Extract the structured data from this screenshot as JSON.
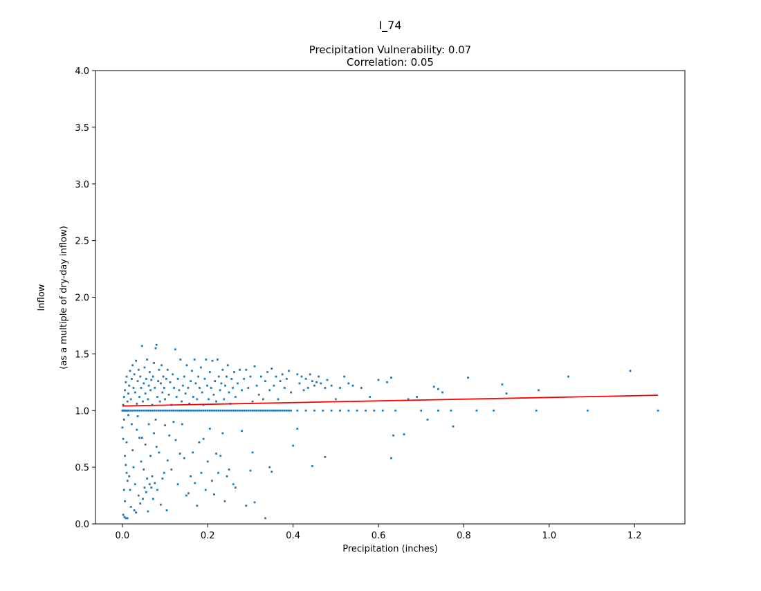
{
  "figure": {
    "suptitle": "I_74"
  },
  "chart_data": {
    "type": "scatter",
    "title_line1": "Precipitation Vulnerability: 0.07",
    "title_line2": "Correlation: 0.05",
    "xlabel": "Precipitation (inches)",
    "ylabel_line1": "Inflow",
    "ylabel_line2": "(as a multiple of dry-day inflow)",
    "xlim": [
      -0.063,
      1.318
    ],
    "ylim": [
      0.0,
      4.0
    ],
    "xticks": [
      0.0,
      0.2,
      0.4,
      0.6,
      0.8,
      1.0,
      1.2
    ],
    "xtick_labels": [
      "0.0",
      "0.2",
      "0.4",
      "0.6",
      "0.8",
      "1.0",
      "1.2"
    ],
    "yticks": [
      0.0,
      0.5,
      1.0,
      1.5,
      2.0,
      2.5,
      3.0,
      3.5,
      4.0
    ],
    "ytick_labels": [
      "0.0",
      "0.5",
      "1.0",
      "1.5",
      "2.0",
      "2.5",
      "3.0",
      "3.5",
      "4.0"
    ],
    "grid": false,
    "point_color": "#1f77b4",
    "fit_line_color": "#ff0000",
    "fit_line": {
      "x": [
        0.0,
        1.255
      ],
      "y": [
        1.04,
        1.135
      ]
    },
    "points": [
      [
        0.0,
        1.0
      ],
      [
        0.003,
        1.0
      ],
      [
        0.005,
        1.0
      ],
      [
        0.008,
        1.0
      ],
      [
        0.012,
        1.0
      ],
      [
        0.015,
        1.0
      ],
      [
        0.02,
        1.0
      ],
      [
        0.025,
        1.0
      ],
      [
        0.03,
        1.0
      ],
      [
        0.035,
        1.0
      ],
      [
        0.04,
        1.0
      ],
      [
        0.045,
        1.0
      ],
      [
        0.05,
        1.0
      ],
      [
        0.055,
        1.0
      ],
      [
        0.06,
        1.0
      ],
      [
        0.065,
        1.0
      ],
      [
        0.07,
        1.0
      ],
      [
        0.075,
        1.0
      ],
      [
        0.08,
        1.0
      ],
      [
        0.085,
        1.0
      ],
      [
        0.09,
        1.0
      ],
      [
        0.095,
        1.0
      ],
      [
        0.1,
        1.0
      ],
      [
        0.105,
        1.0
      ],
      [
        0.11,
        1.0
      ],
      [
        0.115,
        1.0
      ],
      [
        0.12,
        1.0
      ],
      [
        0.125,
        1.0
      ],
      [
        0.13,
        1.0
      ],
      [
        0.135,
        1.0
      ],
      [
        0.14,
        1.0
      ],
      [
        0.145,
        1.0
      ],
      [
        0.15,
        1.0
      ],
      [
        0.155,
        1.0
      ],
      [
        0.16,
        1.0
      ],
      [
        0.165,
        1.0
      ],
      [
        0.17,
        1.0
      ],
      [
        0.175,
        1.0
      ],
      [
        0.18,
        1.0
      ],
      [
        0.185,
        1.0
      ],
      [
        0.19,
        1.0
      ],
      [
        0.195,
        1.0
      ],
      [
        0.2,
        1.0
      ],
      [
        0.205,
        1.0
      ],
      [
        0.21,
        1.0
      ],
      [
        0.215,
        1.0
      ],
      [
        0.22,
        1.0
      ],
      [
        0.225,
        1.0
      ],
      [
        0.23,
        1.0
      ],
      [
        0.235,
        1.0
      ],
      [
        0.24,
        1.0
      ],
      [
        0.245,
        1.0
      ],
      [
        0.25,
        1.0
      ],
      [
        0.255,
        1.0
      ],
      [
        0.26,
        1.0
      ],
      [
        0.265,
        1.0
      ],
      [
        0.27,
        1.0
      ],
      [
        0.275,
        1.0
      ],
      [
        0.28,
        1.0
      ],
      [
        0.285,
        1.0
      ],
      [
        0.29,
        1.0
      ],
      [
        0.295,
        1.0
      ],
      [
        0.3,
        1.0
      ],
      [
        0.305,
        1.0
      ],
      [
        0.31,
        1.0
      ],
      [
        0.315,
        1.0
      ],
      [
        0.32,
        1.0
      ],
      [
        0.325,
        1.0
      ],
      [
        0.33,
        1.0
      ],
      [
        0.335,
        1.0
      ],
      [
        0.34,
        1.0
      ],
      [
        0.345,
        1.0
      ],
      [
        0.35,
        1.0
      ],
      [
        0.355,
        1.0
      ],
      [
        0.36,
        1.0
      ],
      [
        0.365,
        1.0
      ],
      [
        0.37,
        1.0
      ],
      [
        0.375,
        1.0
      ],
      [
        0.38,
        1.0
      ],
      [
        0.385,
        1.0
      ],
      [
        0.39,
        1.0
      ],
      [
        0.395,
        1.0
      ],
      [
        0.41,
        1.0
      ],
      [
        0.43,
        1.0
      ],
      [
        0.45,
        1.0
      ],
      [
        0.47,
        1.0
      ],
      [
        0.49,
        1.0
      ],
      [
        0.51,
        1.0
      ],
      [
        0.53,
        1.0
      ],
      [
        0.55,
        1.0
      ],
      [
        0.57,
        1.0
      ],
      [
        0.59,
        1.0
      ],
      [
        0.61,
        1.0
      ],
      [
        0.64,
        1.0
      ],
      [
        0.7,
        1.0
      ],
      [
        0.74,
        1.0
      ],
      [
        0.77,
        1.0
      ],
      [
        0.83,
        1.0
      ],
      [
        0.87,
        1.0
      ],
      [
        0.97,
        1.0
      ],
      [
        1.09,
        1.0
      ],
      [
        1.255,
        1.0
      ],
      [
        0.002,
        1.05
      ],
      [
        0.004,
        1.12
      ],
      [
        0.006,
        1.18
      ],
      [
        0.008,
        1.25
      ],
      [
        0.01,
        1.3
      ],
      [
        0.012,
        1.08
      ],
      [
        0.014,
        1.15
      ],
      [
        0.016,
        1.22
      ],
      [
        0.018,
        1.35
      ],
      [
        0.02,
        1.1
      ],
      [
        0.022,
        1.28
      ],
      [
        0.024,
        1.4
      ],
      [
        0.026,
        1.2
      ],
      [
        0.028,
        1.32
      ],
      [
        0.03,
        1.16
      ],
      [
        0.032,
        1.44
      ],
      [
        0.034,
        1.06
      ],
      [
        0.036,
        1.26
      ],
      [
        0.038,
        1.36
      ],
      [
        0.04,
        1.12
      ],
      [
        0.042,
        1.3
      ],
      [
        0.044,
        1.2
      ],
      [
        0.046,
        1.57
      ],
      [
        0.048,
        1.08
      ],
      [
        0.05,
        1.24
      ],
      [
        0.052,
        1.38
      ],
      [
        0.054,
        1.15
      ],
      [
        0.056,
        1.28
      ],
      [
        0.058,
        1.45
      ],
      [
        0.06,
        1.1
      ],
      [
        0.062,
        1.22
      ],
      [
        0.064,
        1.34
      ],
      [
        0.066,
        1.18
      ],
      [
        0.068,
        1.27
      ],
      [
        0.07,
        1.05
      ],
      [
        0.072,
        1.3
      ],
      [
        0.074,
        1.42
      ],
      [
        0.076,
        1.2
      ],
      [
        0.078,
        1.55
      ],
      [
        0.08,
        1.58
      ],
      [
        0.082,
        1.12
      ],
      [
        0.084,
        1.26
      ],
      [
        0.086,
        1.36
      ],
      [
        0.088,
        1.08
      ],
      [
        0.09,
        1.24
      ],
      [
        0.092,
        1.4
      ],
      [
        0.094,
        1.16
      ],
      [
        0.096,
        1.3
      ],
      [
        0.098,
        1.2
      ],
      [
        0.1,
        1.1
      ],
      [
        0.103,
        1.28
      ],
      [
        0.106,
        1.36
      ],
      [
        0.109,
        1.14
      ],
      [
        0.112,
        1.25
      ],
      [
        0.115,
        1.05
      ],
      [
        0.118,
        1.32
      ],
      [
        0.121,
        1.2
      ],
      [
        0.124,
        1.54
      ],
      [
        0.127,
        1.12
      ],
      [
        0.13,
        1.28
      ],
      [
        0.133,
        1.18
      ],
      [
        0.136,
        1.45
      ],
      [
        0.139,
        1.08
      ],
      [
        0.142,
        1.22
      ],
      [
        0.145,
        1.3
      ],
      [
        0.148,
        1.15
      ],
      [
        0.151,
        1.4
      ],
      [
        0.154,
        1.2
      ],
      [
        0.157,
        1.06
      ],
      [
        0.16,
        1.26
      ],
      [
        0.163,
        1.35
      ],
      [
        0.166,
        1.12
      ],
      [
        0.169,
        1.45
      ],
      [
        0.172,
        1.24
      ],
      [
        0.175,
        1.1
      ],
      [
        0.178,
        1.3
      ],
      [
        0.181,
        1.2
      ],
      [
        0.184,
        1.38
      ],
      [
        0.187,
        1.16
      ],
      [
        0.19,
        1.05
      ],
      [
        0.193,
        1.28
      ],
      [
        0.196,
        1.45
      ],
      [
        0.199,
        1.22
      ],
      [
        0.202,
        1.1
      ],
      [
        0.205,
        1.34
      ],
      [
        0.208,
        1.2
      ],
      [
        0.211,
        1.44
      ],
      [
        0.214,
        1.14
      ],
      [
        0.217,
        1.26
      ],
      [
        0.22,
        1.08
      ],
      [
        0.223,
        1.45
      ],
      [
        0.226,
        1.3
      ],
      [
        0.229,
        1.18
      ],
      [
        0.232,
        1.24
      ],
      [
        0.235,
        1.36
      ],
      [
        0.238,
        1.1
      ],
      [
        0.241,
        1.22
      ],
      [
        0.244,
        1.3
      ],
      [
        0.247,
        1.4
      ],
      [
        0.25,
        1.16
      ],
      [
        0.253,
        1.06
      ],
      [
        0.256,
        1.28
      ],
      [
        0.259,
        1.2
      ],
      [
        0.262,
        1.34
      ],
      [
        0.265,
        1.12
      ],
      [
        0.27,
        1.24
      ],
      [
        0.275,
        1.36
      ],
      [
        0.28,
        1.18
      ],
      [
        0.285,
        1.28
      ],
      [
        0.29,
        1.36
      ],
      [
        0.295,
        1.2
      ],
      [
        0.3,
        1.3
      ],
      [
        0.305,
        1.08
      ],
      [
        0.31,
        1.39
      ],
      [
        0.315,
        1.22
      ],
      [
        0.32,
        1.14
      ],
      [
        0.325,
        1.3
      ],
      [
        0.33,
        1.1
      ],
      [
        0.335,
        1.26
      ],
      [
        0.34,
        1.34
      ],
      [
        0.345,
        1.18
      ],
      [
        0.35,
        1.37
      ],
      [
        0.355,
        1.22
      ],
      [
        0.36,
        1.3
      ],
      [
        0.365,
        1.1
      ],
      [
        0.37,
        1.26
      ],
      [
        0.375,
        1.32
      ],
      [
        0.38,
        1.2
      ],
      [
        0.385,
        1.28
      ],
      [
        0.39,
        1.35
      ],
      [
        0.395,
        1.16
      ],
      [
        0.41,
        1.32
      ],
      [
        0.415,
        1.24
      ],
      [
        0.42,
        1.3
      ],
      [
        0.425,
        1.18
      ],
      [
        0.43,
        1.28
      ],
      [
        0.435,
        1.2
      ],
      [
        0.44,
        1.32
      ],
      [
        0.445,
        1.26
      ],
      [
        0.45,
        1.22
      ],
      [
        0.455,
        1.25
      ],
      [
        0.46,
        1.3
      ],
      [
        0.465,
        1.24
      ],
      [
        0.475,
        1.2
      ],
      [
        0.48,
        1.27
      ],
      [
        0.49,
        1.22
      ],
      [
        0.5,
        1.1
      ],
      [
        0.51,
        1.2
      ],
      [
        0.52,
        1.3
      ],
      [
        0.53,
        1.24
      ],
      [
        0.54,
        1.22
      ],
      [
        0.56,
        1.2
      ],
      [
        0.58,
        1.12
      ],
      [
        0.6,
        1.27
      ],
      [
        0.62,
        1.25
      ],
      [
        0.63,
        1.29
      ],
      [
        0.67,
        1.1
      ],
      [
        0.69,
        1.12
      ],
      [
        0.73,
        1.21
      ],
      [
        0.74,
        1.19
      ],
      [
        0.75,
        1.16
      ],
      [
        0.81,
        1.29
      ],
      [
        0.89,
        1.23
      ],
      [
        0.9,
        1.15
      ],
      [
        0.975,
        1.18
      ],
      [
        1.045,
        1.3
      ],
      [
        1.19,
        1.35
      ],
      [
        0.0,
        0.85
      ],
      [
        0.002,
        0.75
      ],
      [
        0.004,
        0.92
      ],
      [
        0.006,
        0.6
      ],
      [
        0.008,
        0.52
      ],
      [
        0.01,
        0.45
      ],
      [
        0.002,
        0.08
      ],
      [
        0.005,
        0.06
      ],
      [
        0.008,
        0.05
      ],
      [
        0.012,
        0.05
      ],
      [
        0.004,
        0.3
      ],
      [
        0.006,
        0.2
      ],
      [
        0.01,
        0.72
      ],
      [
        0.012,
        0.38
      ],
      [
        0.014,
        0.96
      ],
      [
        0.016,
        0.42
      ],
      [
        0.018,
        0.3
      ],
      [
        0.02,
        0.15
      ],
      [
        0.022,
        0.88
      ],
      [
        0.024,
        0.65
      ],
      [
        0.026,
        0.5
      ],
      [
        0.028,
        0.12
      ],
      [
        0.03,
        0.35
      ],
      [
        0.032,
        0.1
      ],
      [
        0.034,
        0.83
      ],
      [
        0.036,
        0.95
      ],
      [
        0.038,
        0.25
      ],
      [
        0.04,
        0.76
      ],
      [
        0.042,
        0.18
      ],
      [
        0.044,
        0.55
      ],
      [
        0.046,
        0.76
      ],
      [
        0.048,
        0.22
      ],
      [
        0.05,
        0.48
      ],
      [
        0.052,
        0.32
      ],
      [
        0.054,
        0.7
      ],
      [
        0.056,
        0.28
      ],
      [
        0.058,
        0.4
      ],
      [
        0.06,
        0.11
      ],
      [
        0.062,
        0.88
      ],
      [
        0.064,
        0.35
      ],
      [
        0.066,
        0.6
      ],
      [
        0.068,
        0.32
      ],
      [
        0.07,
        0.42
      ],
      [
        0.072,
        0.22
      ],
      [
        0.074,
        0.8
      ],
      [
        0.076,
        0.36
      ],
      [
        0.078,
        0.92
      ],
      [
        0.08,
        0.68
      ],
      [
        0.082,
        0.3
      ],
      [
        0.086,
        0.63
      ],
      [
        0.09,
        0.17
      ],
      [
        0.094,
        0.4
      ],
      [
        0.098,
        0.45
      ],
      [
        0.1,
        0.87
      ],
      [
        0.104,
        0.12
      ],
      [
        0.106,
        0.56
      ],
      [
        0.11,
        0.78
      ],
      [
        0.115,
        0.48
      ],
      [
        0.12,
        0.9
      ],
      [
        0.125,
        0.74
      ],
      [
        0.13,
        0.35
      ],
      [
        0.135,
        0.62
      ],
      [
        0.14,
        0.88
      ],
      [
        0.145,
        0.58
      ],
      [
        0.15,
        0.25
      ],
      [
        0.155,
        0.27
      ],
      [
        0.16,
        0.42
      ],
      [
        0.165,
        0.63
      ],
      [
        0.17,
        0.36
      ],
      [
        0.175,
        0.16
      ],
      [
        0.18,
        0.72
      ],
      [
        0.185,
        0.45
      ],
      [
        0.19,
        0.75
      ],
      [
        0.195,
        0.3
      ],
      [
        0.2,
        0.55
      ],
      [
        0.205,
        0.84
      ],
      [
        0.21,
        0.38
      ],
      [
        0.215,
        0.26
      ],
      [
        0.22,
        0.62
      ],
      [
        0.225,
        0.45
      ],
      [
        0.23,
        0.6
      ],
      [
        0.235,
        0.8
      ],
      [
        0.24,
        0.2
      ],
      [
        0.245,
        0.42
      ],
      [
        0.25,
        0.48
      ],
      [
        0.26,
        0.35
      ],
      [
        0.265,
        0.32
      ],
      [
        0.28,
        0.82
      ],
      [
        0.29,
        0.16
      ],
      [
        0.3,
        0.47
      ],
      [
        0.305,
        0.63
      ],
      [
        0.31,
        0.19
      ],
      [
        0.335,
        0.05
      ],
      [
        0.345,
        0.5
      ],
      [
        0.35,
        0.46
      ],
      [
        0.4,
        0.69
      ],
      [
        0.41,
        0.84
      ],
      [
        0.445,
        0.51
      ],
      [
        0.475,
        0.59
      ],
      [
        0.63,
        0.58
      ],
      [
        0.635,
        0.78
      ],
      [
        0.66,
        0.79
      ],
      [
        0.715,
        0.92
      ],
      [
        0.775,
        0.86
      ]
    ]
  }
}
